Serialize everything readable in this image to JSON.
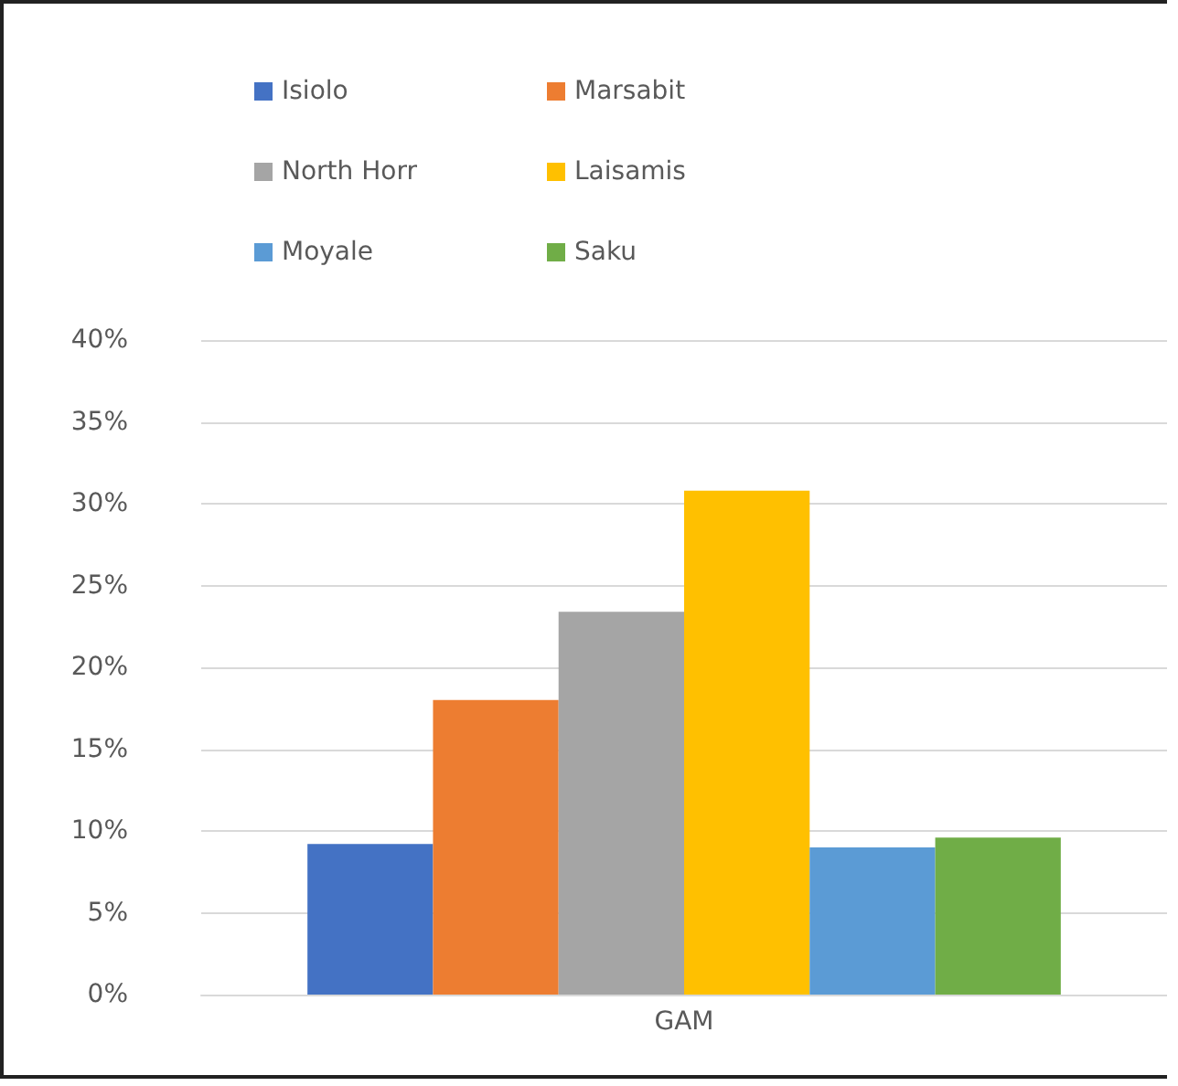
{
  "chart_data": {
    "type": "bar",
    "categories": [
      "GAM"
    ],
    "series": [
      {
        "name": "Isiolo",
        "color": "#4472c4",
        "values": [
          9.2
        ]
      },
      {
        "name": "Marsabit",
        "color": "#ed7d31",
        "values": [
          18
        ]
      },
      {
        "name": "North Horr",
        "color": "#a5a5a5",
        "values": [
          23.4
        ]
      },
      {
        "name": "Laisamis",
        "color": "#ffc000",
        "values": [
          30.8
        ]
      },
      {
        "name": "Moyale",
        "color": "#5b9bd5",
        "values": [
          9
        ]
      },
      {
        "name": "Saku",
        "color": "#70ad47",
        "values": [
          9.6
        ]
      }
    ],
    "ylim": [
      0,
      40
    ],
    "yticks": [
      {
        "value": 0,
        "label": "0%"
      },
      {
        "value": 5,
        "label": "5%"
      },
      {
        "value": 10,
        "label": "10%"
      },
      {
        "value": 15,
        "label": "15%"
      },
      {
        "value": 20,
        "label": "20%"
      },
      {
        "value": 25,
        "label": "25%"
      },
      {
        "value": 30,
        "label": "30%"
      },
      {
        "value": 35,
        "label": "35%"
      },
      {
        "value": 40,
        "label": "40%"
      }
    ],
    "grid": "y",
    "legend": "top"
  }
}
